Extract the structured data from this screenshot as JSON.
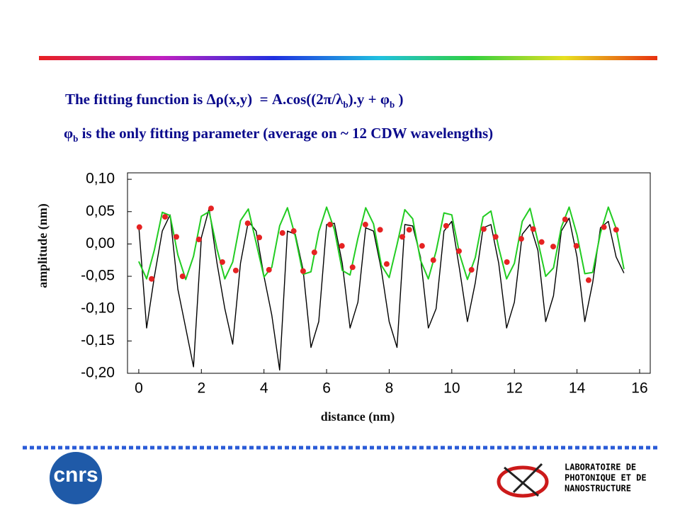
{
  "heading": {
    "line1": [
      "The fitting function is Δρ(x,y)  = A.cos((2π/λ",
      "b",
      ").y + φ",
      "b",
      " )"
    ],
    "line2": [
      "φ",
      "b",
      " is the only fitting parameter (average on ~ 12 CDW wavelengths)"
    ]
  },
  "chart_data": {
    "type": "line",
    "xlabel": "distance (nm)",
    "ylabel": "amplitude (nm)",
    "xlim": [
      -0.36,
      16.34
    ],
    "ylim": [
      -0.2,
      0.11
    ],
    "xticks": [
      0,
      2,
      4,
      6,
      8,
      10,
      12,
      14,
      16
    ],
    "yticks": [
      {
        "value": 0.1,
        "label": "0,10"
      },
      {
        "value": 0.05,
        "label": "0,05"
      },
      {
        "value": 0,
        "label": "0,00"
      },
      {
        "value": -0.05,
        "label": "-0,05"
      },
      {
        "value": -0.1,
        "label": "-0,10"
      },
      {
        "value": -0.15,
        "label": "-0,15"
      },
      {
        "value": -0.2,
        "label": "-0,20"
      }
    ],
    "series": [
      {
        "mode": "line",
        "color": "#000000",
        "x": [
          0,
          0.25,
          0.5,
          0.75,
          1,
          1.25,
          1.5,
          1.75,
          2,
          2.25,
          2.5,
          2.75,
          3,
          3.25,
          3.5,
          3.75,
          4,
          4.25,
          4.5,
          4.75,
          5,
          5.25,
          5.5,
          5.75,
          6,
          6.25,
          6.5,
          6.75,
          7,
          7.25,
          7.5,
          7.75,
          8,
          8.25,
          8.5,
          8.75,
          9,
          9.25,
          9.5,
          9.75,
          10,
          10.25,
          10.5,
          10.75,
          11,
          11.25,
          11.5,
          11.75,
          12,
          12.25,
          12.5,
          12.75,
          13,
          13.25,
          13.5,
          13.75,
          14,
          14.25,
          14.5,
          14.75,
          15,
          15.25,
          15.5
        ],
        "values": [
          0.028,
          -0.13,
          -0.05,
          0.02,
          0.045,
          -0.07,
          -0.13,
          -0.19,
          0.01,
          0.055,
          -0.03,
          -0.1,
          -0.155,
          -0.03,
          0.035,
          0.02,
          -0.05,
          -0.11,
          -0.195,
          0.02,
          0.015,
          -0.04,
          -0.16,
          -0.12,
          0.03,
          0.032,
          -0.03,
          -0.13,
          -0.09,
          0.025,
          0.02,
          -0.04,
          -0.12,
          -0.16,
          0.03,
          0.028,
          -0.02,
          -0.13,
          -0.1,
          0.02,
          0.035,
          -0.04,
          -0.12,
          -0.06,
          0.025,
          0.03,
          -0.03,
          -0.13,
          -0.09,
          0.015,
          0.03,
          -0.01,
          -0.12,
          -0.08,
          0.02,
          0.04,
          -0.02,
          -0.12,
          -0.06,
          0.025,
          0.035,
          -0.02,
          -0.045
        ]
      },
      {
        "mode": "line",
        "color": "#22cc22",
        "x": [
          0,
          0.25,
          0.5,
          0.75,
          1,
          1.25,
          1.5,
          1.75,
          2,
          2.25,
          2.5,
          2.75,
          3,
          3.25,
          3.5,
          3.75,
          4,
          4.25,
          4.5,
          4.75,
          5,
          5.25,
          5.5,
          5.75,
          6,
          6.25,
          6.5,
          6.75,
          7,
          7.25,
          7.5,
          7.75,
          8,
          8.25,
          8.5,
          8.75,
          9,
          9.25,
          9.5,
          9.75,
          10,
          10.25,
          10.5,
          10.75,
          11,
          11.25,
          11.5,
          11.75,
          12,
          12.25,
          12.5,
          12.75,
          13,
          13.25,
          13.5,
          13.75,
          14,
          14.25,
          14.5,
          14.75,
          15,
          15.25,
          15.5
        ],
        "values": [
          -0.027,
          -0.054,
          -0.009,
          0.049,
          0.044,
          -0.017,
          -0.055,
          -0.019,
          0.043,
          0.05,
          -0.008,
          -0.054,
          -0.028,
          0.036,
          0.054,
          0.002,
          -0.051,
          -0.036,
          0.028,
          0.056,
          0.012,
          -0.047,
          -0.043,
          0.019,
          0.057,
          0.022,
          -0.041,
          -0.048,
          0.009,
          0.056,
          0.031,
          -0.033,
          -0.052,
          -0.001,
          0.053,
          0.039,
          -0.025,
          -0.054,
          -0.011,
          0.048,
          0.045,
          -0.016,
          -0.055,
          -0.021,
          0.042,
          0.051,
          -0.006,
          -0.054,
          -0.03,
          0.035,
          0.055,
          0.004,
          -0.05,
          -0.037,
          0.026,
          0.057,
          0.014,
          -0.046,
          -0.044,
          0.017,
          0.057,
          0.024,
          -0.039
        ]
      },
      {
        "mode": "markers",
        "color": "#e52222",
        "x": [
          0.02,
          0.41,
          0.84,
          1.2,
          1.4,
          1.92,
          2.31,
          2.67,
          3.1,
          3.48,
          3.85,
          4.16,
          4.59,
          4.95,
          5.25,
          5.61,
          6.11,
          6.49,
          6.83,
          7.24,
          7.71,
          7.92,
          8.42,
          8.64,
          9.05,
          9.41,
          9.82,
          10.23,
          10.63,
          11.02,
          11.4,
          11.76,
          12.22,
          12.6,
          12.87,
          13.24,
          13.62,
          13.98,
          14.37,
          14.86,
          15.25
        ],
        "values": [
          0.026,
          -0.054,
          0.042,
          0.011,
          -0.05,
          0.007,
          0.055,
          -0.028,
          -0.041,
          0.032,
          0.01,
          -0.04,
          0.017,
          0.02,
          -0.042,
          -0.013,
          0.03,
          -0.003,
          -0.036,
          0.03,
          0.022,
          -0.031,
          0.011,
          0.022,
          -0.003,
          -0.025,
          0.028,
          -0.011,
          -0.04,
          0.023,
          0.011,
          -0.028,
          0.008,
          0.023,
          0.003,
          -0.004,
          0.038,
          -0.003,
          -0.056,
          0.026,
          0.022
        ]
      }
    ]
  },
  "logos": {
    "cnrs": "cnrs",
    "lab": [
      "LABORATOIRE DE",
      "PHOTONIQUE ET DE",
      "NANOSTRUCTURE"
    ]
  }
}
